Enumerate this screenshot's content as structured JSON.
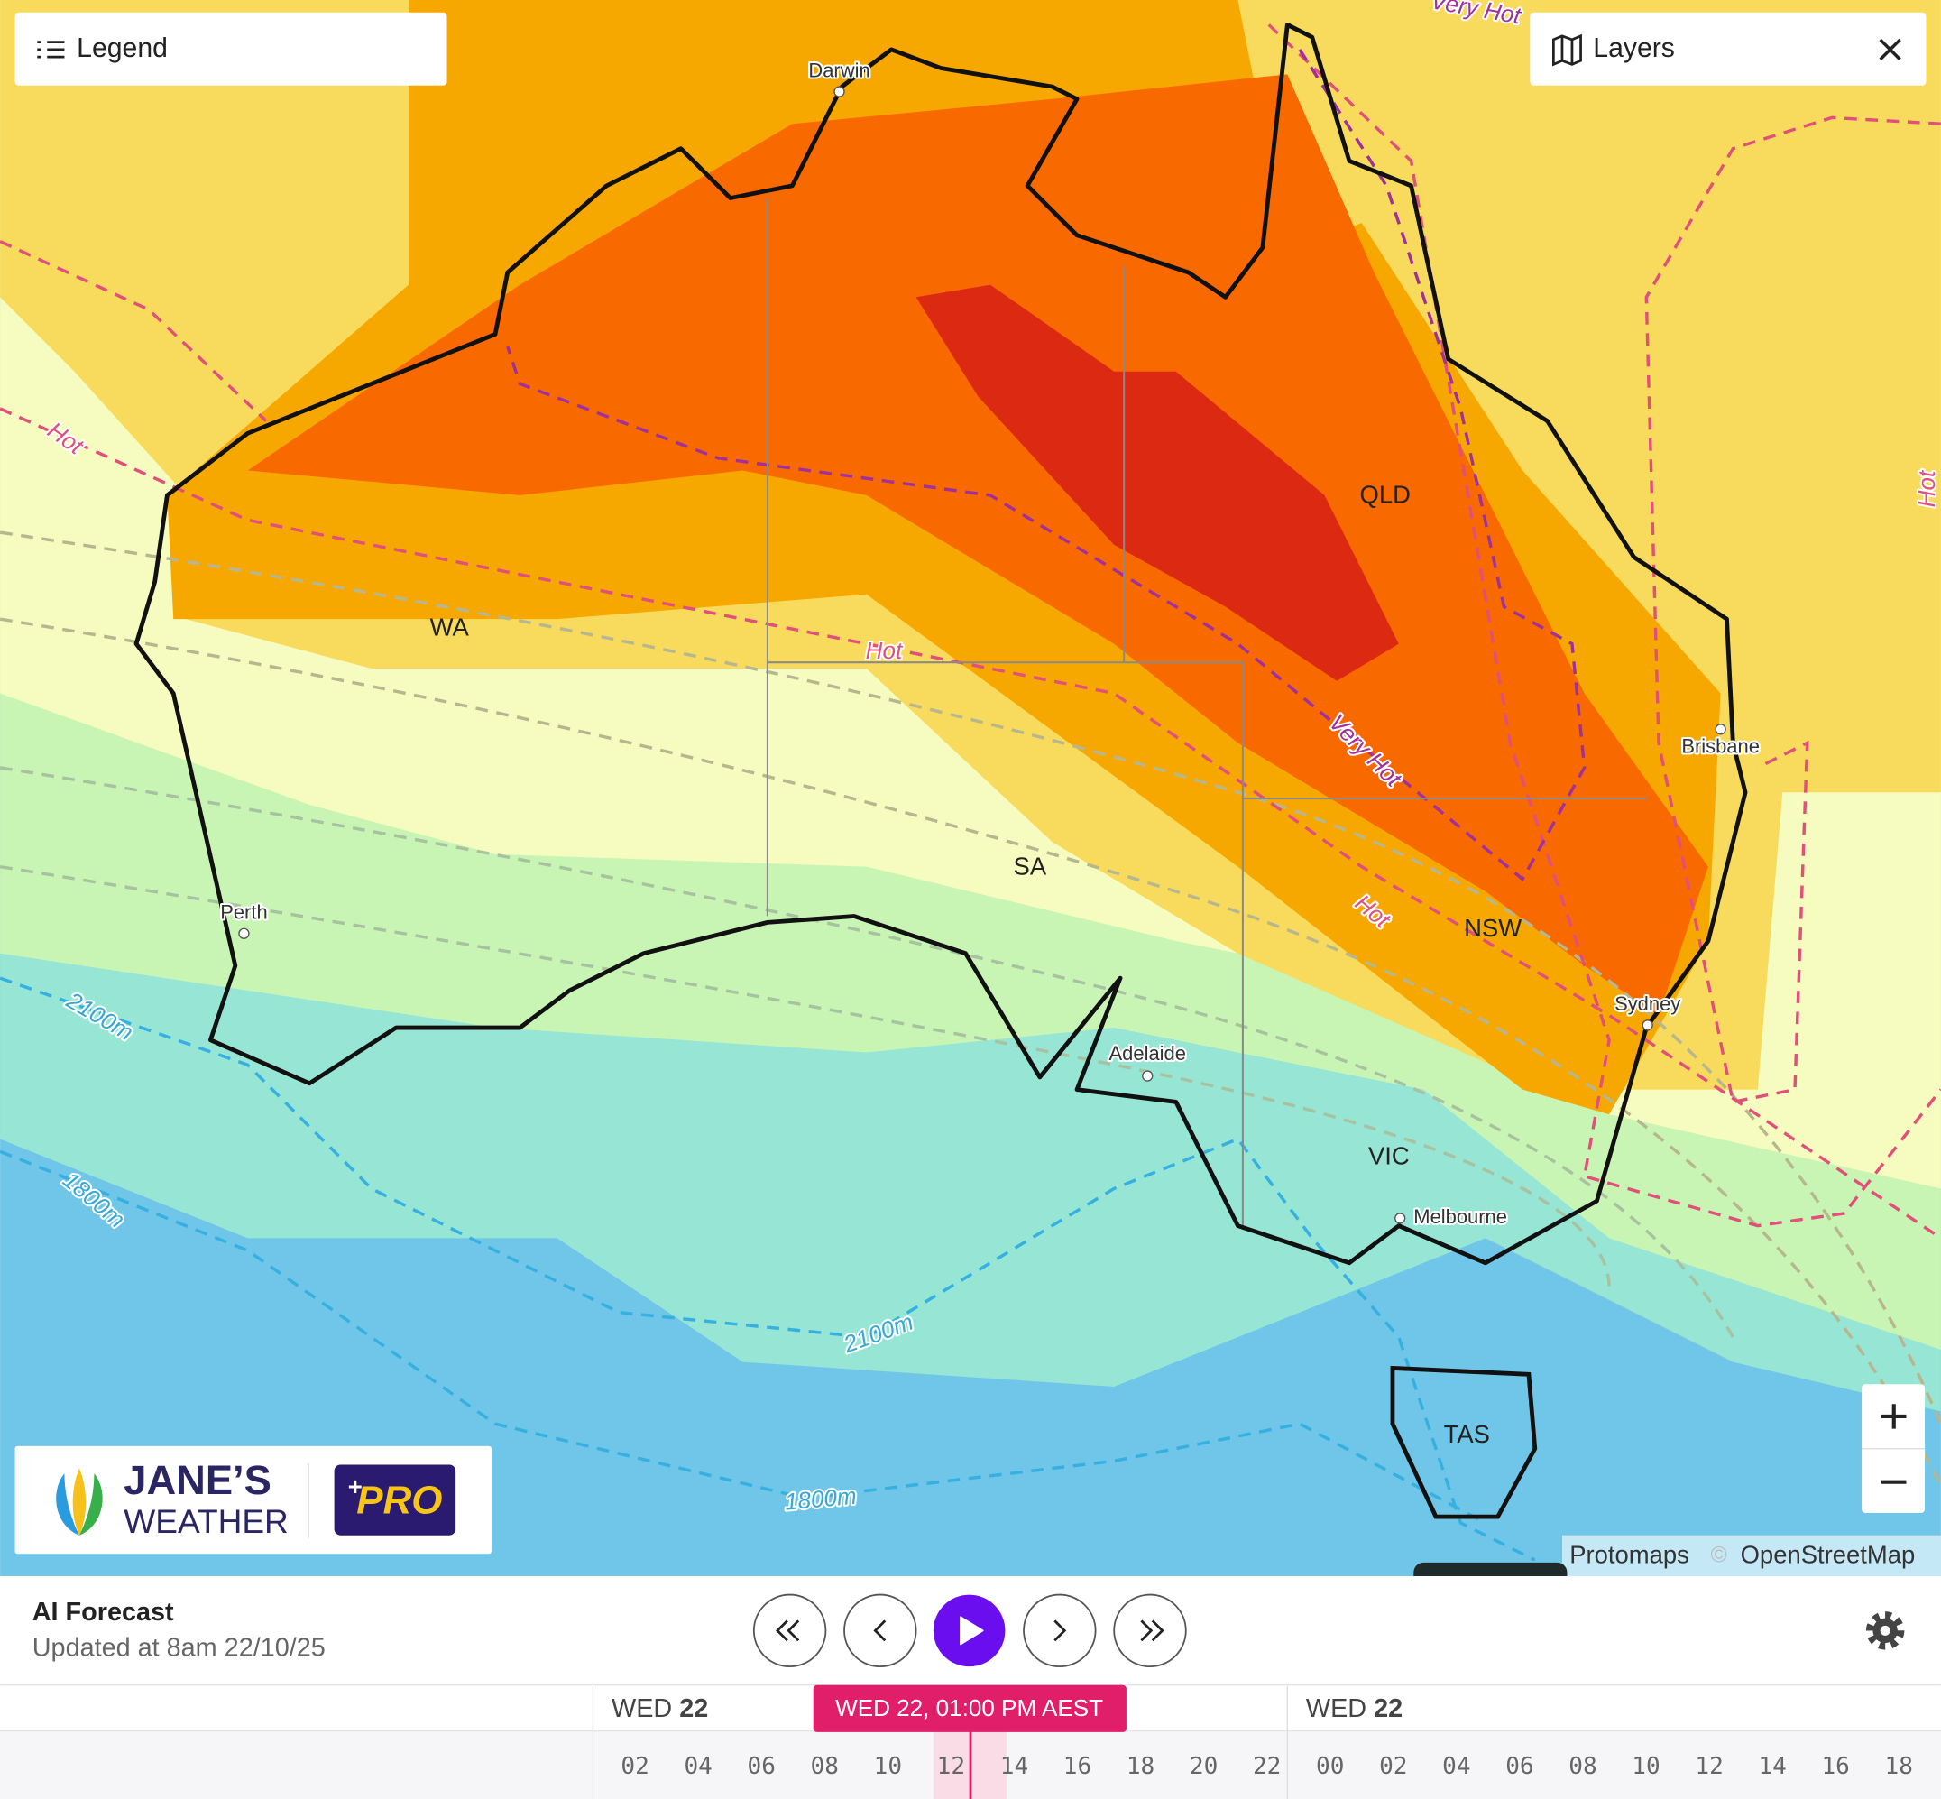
{
  "header": {
    "legend": "Legend",
    "layers": "Layers"
  },
  "map": {
    "cities": [
      "Darwin",
      "Perth",
      "Adelaide",
      "Melbourne",
      "Brisbane",
      "Sydney"
    ],
    "states": [
      "WA",
      "SA",
      "QLD",
      "NSW",
      "VIC",
      "TAS"
    ],
    "contour_labels": [
      "Very Hot",
      "Hot",
      "Hot",
      "Very Hot",
      "Hot",
      "Hot",
      "2100m",
      "1800m",
      "2100m",
      "1800m"
    ]
  },
  "brand": {
    "name_line1": "JANE’S",
    "name_line2": "WEATHER",
    "plus": "+",
    "badge": "PRO"
  },
  "attribution": {
    "provider": "Protomaps",
    "copyright": "©",
    "source": "OpenStreetMap"
  },
  "forecast": {
    "title": "AI Forecast",
    "updated": "Updated at 8am 22/10/25"
  },
  "timeline": {
    "days": [
      {
        "weekday": "WED",
        "day": "22"
      },
      {
        "weekday": "WED",
        "day": "22"
      }
    ],
    "current": "WED 22, 01:00 PM AEST",
    "hours": [
      "02",
      "04",
      "06",
      "08",
      "10",
      "12",
      "14",
      "16",
      "18",
      "20",
      "22",
      "00",
      "02",
      "04",
      "06",
      "08",
      "10",
      "12",
      "14",
      "16",
      "18"
    ]
  }
}
